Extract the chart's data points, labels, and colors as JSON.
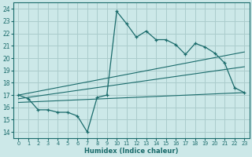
{
  "bg_color": "#cce8e8",
  "grid_color": "#aacccc",
  "line_color": "#1a6b6b",
  "xlabel": "Humidex (Indice chaleur)",
  "ylabel_ticks": [
    14,
    15,
    16,
    17,
    18,
    19,
    20,
    21,
    22,
    23,
    24
  ],
  "xlim": [
    -0.5,
    23.5
  ],
  "ylim": [
    13.5,
    24.5
  ],
  "xticks": [
    0,
    1,
    2,
    3,
    4,
    5,
    6,
    7,
    8,
    9,
    10,
    11,
    12,
    13,
    14,
    15,
    16,
    17,
    18,
    19,
    20,
    21,
    22,
    23
  ],
  "main_x": [
    0,
    1,
    2,
    3,
    4,
    5,
    6,
    7,
    8,
    9,
    10,
    11,
    12,
    13,
    14,
    15,
    16,
    17,
    18,
    19,
    20,
    21,
    22,
    23
  ],
  "main_y": [
    17.0,
    16.7,
    15.8,
    15.8,
    15.6,
    15.6,
    15.3,
    14.0,
    16.8,
    17.0,
    23.8,
    22.8,
    21.7,
    22.2,
    21.5,
    21.5,
    21.1,
    20.3,
    21.2,
    20.9,
    20.4,
    19.6,
    17.6,
    17.2
  ],
  "trend1_x": [
    0,
    23
  ],
  "trend1_y": [
    17.0,
    20.5
  ],
  "trend2_x": [
    0,
    23
  ],
  "trend2_y": [
    16.7,
    19.3
  ],
  "trend3_x": [
    0,
    23
  ],
  "trend3_y": [
    16.4,
    17.2
  ]
}
